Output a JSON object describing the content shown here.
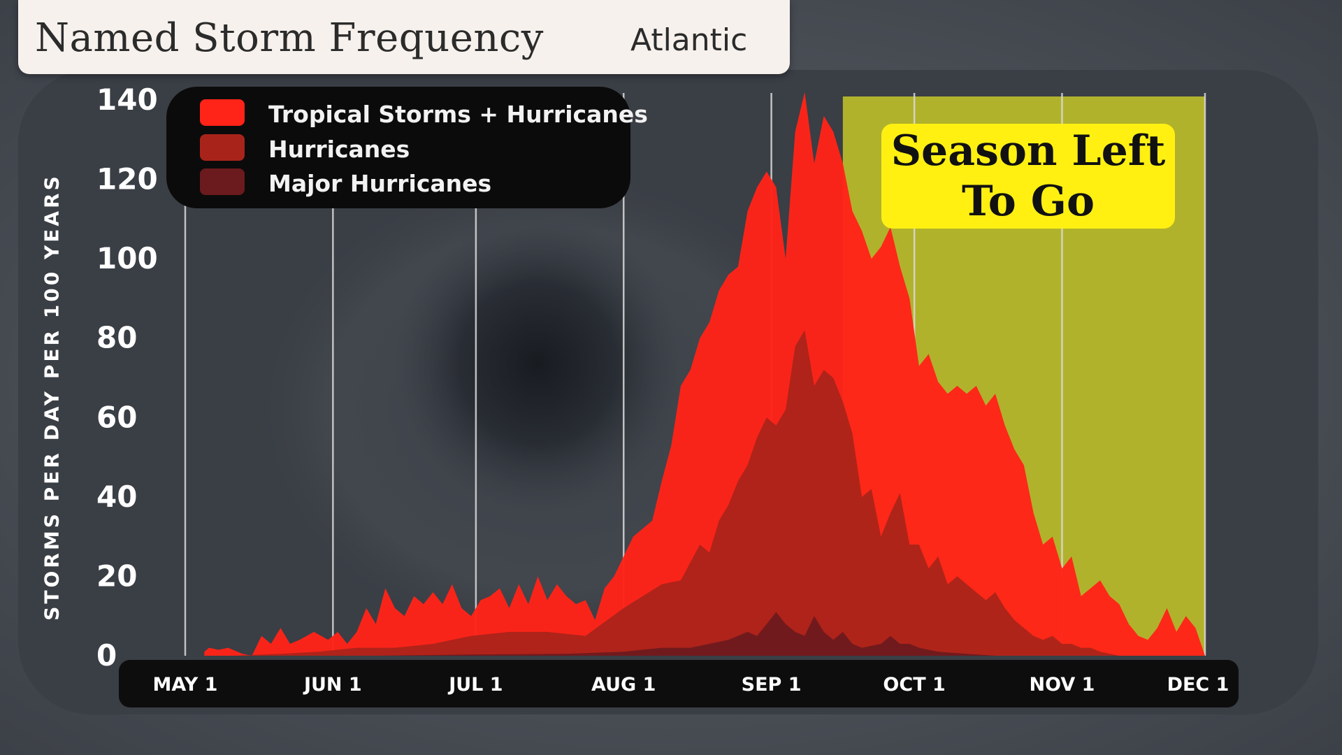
{
  "title": "Named Storm Frequency",
  "region": "Atlantic",
  "callout": {
    "line1": "Season Left",
    "line2": "To Go"
  },
  "colors": {
    "tropical_storms_hurricanes": "#ff2318",
    "hurricanes": "#a8241a",
    "major_hurricanes": "#6b1a1d",
    "season_left_shade": "#bcbc2a",
    "callout_bg": "#fff012"
  },
  "chart_data": {
    "type": "area",
    "ylabel": "STORMS PER DAY PER 100 YEARS",
    "ylim": [
      0,
      140
    ],
    "yticks": [
      0,
      20,
      40,
      60,
      80,
      100,
      120,
      140
    ],
    "xlim": [
      "May 1",
      "Dec 1"
    ],
    "xticks": [
      {
        "day": 0,
        "label": "MAY 1"
      },
      {
        "day": 31,
        "label": "JUN 1"
      },
      {
        "day": 61,
        "label": "JUL 1"
      },
      {
        "day": 92,
        "label": "AUG 1"
      },
      {
        "day": 123,
        "label": "SEP 1"
      },
      {
        "day": 153,
        "label": "OCT 1"
      },
      {
        "day": 184,
        "label": "NOV 1"
      },
      {
        "day": 214,
        "label": "DEC 1"
      }
    ],
    "shaded_region": {
      "label": "Season Left To Go",
      "from": "Sep 16",
      "to": "Dec 1"
    },
    "legend_position": "top-left",
    "series": [
      {
        "name": "Tropical Storms + Hurricanes",
        "points": [
          [
            4,
            1
          ],
          [
            5,
            2
          ],
          [
            7,
            1.5
          ],
          [
            9,
            2
          ],
          [
            12,
            0.5
          ],
          [
            14,
            0
          ],
          [
            16,
            5
          ],
          [
            18,
            3
          ],
          [
            20,
            7
          ],
          [
            22,
            3
          ],
          [
            24,
            4
          ],
          [
            27,
            6
          ],
          [
            30,
            4
          ],
          [
            32,
            6
          ],
          [
            34,
            3
          ],
          [
            36,
            6
          ],
          [
            38,
            12
          ],
          [
            40,
            8
          ],
          [
            42,
            17
          ],
          [
            44,
            12
          ],
          [
            46,
            10
          ],
          [
            48,
            15
          ],
          [
            50,
            13
          ],
          [
            52,
            16
          ],
          [
            54,
            13
          ],
          [
            56,
            18
          ],
          [
            58,
            12
          ],
          [
            60,
            10
          ],
          [
            62,
            14
          ],
          [
            64,
            15
          ],
          [
            66,
            17
          ],
          [
            68,
            12
          ],
          [
            70,
            18
          ],
          [
            72,
            13
          ],
          [
            74,
            20
          ],
          [
            76,
            14
          ],
          [
            78,
            18
          ],
          [
            80,
            15
          ],
          [
            82,
            13
          ],
          [
            84,
            14
          ],
          [
            86,
            9
          ],
          [
            88,
            17
          ],
          [
            90,
            20
          ],
          [
            92,
            25
          ],
          [
            94,
            30
          ],
          [
            96,
            32
          ],
          [
            98,
            34
          ],
          [
            100,
            44
          ],
          [
            102,
            53
          ],
          [
            104,
            68
          ],
          [
            106,
            72
          ],
          [
            108,
            80
          ],
          [
            110,
            84
          ],
          [
            112,
            92
          ],
          [
            114,
            96
          ],
          [
            116,
            98
          ],
          [
            118,
            112
          ],
          [
            120,
            118
          ],
          [
            122,
            122
          ],
          [
            124,
            118
          ],
          [
            126,
            100
          ],
          [
            128,
            132
          ],
          [
            130,
            142
          ],
          [
            132,
            124
          ],
          [
            134,
            136
          ],
          [
            136,
            132
          ],
          [
            138,
            124
          ],
          [
            140,
            112
          ],
          [
            142,
            107
          ],
          [
            144,
            100
          ],
          [
            146,
            103
          ],
          [
            148,
            108
          ],
          [
            150,
            98
          ],
          [
            152,
            90
          ],
          [
            154,
            73
          ],
          [
            156,
            76
          ],
          [
            158,
            69
          ],
          [
            160,
            66
          ],
          [
            162,
            68
          ],
          [
            164,
            66
          ],
          [
            166,
            68
          ],
          [
            168,
            63
          ],
          [
            170,
            66
          ],
          [
            172,
            58
          ],
          [
            174,
            52
          ],
          [
            176,
            48
          ],
          [
            178,
            36
          ],
          [
            180,
            28
          ],
          [
            182,
            30
          ],
          [
            184,
            22
          ],
          [
            186,
            25
          ],
          [
            188,
            15
          ],
          [
            190,
            17
          ],
          [
            192,
            19
          ],
          [
            194,
            15
          ],
          [
            196,
            13
          ],
          [
            198,
            8
          ],
          [
            200,
            5
          ],
          [
            202,
            4
          ],
          [
            204,
            7
          ],
          [
            206,
            12
          ],
          [
            208,
            6
          ],
          [
            210,
            10
          ],
          [
            212,
            7
          ],
          [
            214,
            0
          ]
        ]
      },
      {
        "name": "Hurricanes",
        "points": [
          [
            10,
            0
          ],
          [
            20,
            0.5
          ],
          [
            28,
            1
          ],
          [
            36,
            2
          ],
          [
            44,
            2
          ],
          [
            52,
            3
          ],
          [
            60,
            5
          ],
          [
            68,
            6
          ],
          [
            76,
            6
          ],
          [
            84,
            5
          ],
          [
            92,
            12
          ],
          [
            96,
            15
          ],
          [
            100,
            18
          ],
          [
            104,
            19
          ],
          [
            108,
            28
          ],
          [
            110,
            26
          ],
          [
            112,
            34
          ],
          [
            114,
            38
          ],
          [
            116,
            44
          ],
          [
            118,
            48
          ],
          [
            120,
            55
          ],
          [
            122,
            60
          ],
          [
            124,
            58
          ],
          [
            126,
            62
          ],
          [
            128,
            78
          ],
          [
            130,
            82
          ],
          [
            132,
            68
          ],
          [
            134,
            72
          ],
          [
            136,
            70
          ],
          [
            138,
            64
          ],
          [
            140,
            56
          ],
          [
            142,
            40
          ],
          [
            144,
            42
          ],
          [
            146,
            30
          ],
          [
            148,
            36
          ],
          [
            150,
            41
          ],
          [
            152,
            28
          ],
          [
            154,
            28
          ],
          [
            156,
            22
          ],
          [
            158,
            25
          ],
          [
            160,
            18
          ],
          [
            162,
            20
          ],
          [
            164,
            18
          ],
          [
            166,
            16
          ],
          [
            168,
            14
          ],
          [
            170,
            16
          ],
          [
            172,
            12
          ],
          [
            174,
            9
          ],
          [
            176,
            7
          ],
          [
            178,
            5
          ],
          [
            180,
            4
          ],
          [
            182,
            5
          ],
          [
            184,
            3
          ],
          [
            186,
            3
          ],
          [
            188,
            2
          ],
          [
            190,
            2
          ],
          [
            192,
            1
          ],
          [
            196,
            0
          ]
        ]
      },
      {
        "name": "Major Hurricanes",
        "points": [
          [
            40,
            0
          ],
          [
            60,
            0.3
          ],
          [
            80,
            0.5
          ],
          [
            92,
            1
          ],
          [
            100,
            2
          ],
          [
            106,
            2
          ],
          [
            110,
            3
          ],
          [
            114,
            4
          ],
          [
            118,
            6
          ],
          [
            120,
            5
          ],
          [
            122,
            8
          ],
          [
            124,
            11
          ],
          [
            126,
            8
          ],
          [
            128,
            6
          ],
          [
            130,
            5
          ],
          [
            132,
            10
          ],
          [
            134,
            6
          ],
          [
            136,
            4
          ],
          [
            138,
            6
          ],
          [
            140,
            3
          ],
          [
            142,
            2
          ],
          [
            146,
            3
          ],
          [
            148,
            5
          ],
          [
            150,
            3
          ],
          [
            152,
            3
          ],
          [
            154,
            2
          ],
          [
            158,
            1
          ],
          [
            164,
            0.5
          ],
          [
            170,
            0
          ]
        ]
      }
    ]
  }
}
